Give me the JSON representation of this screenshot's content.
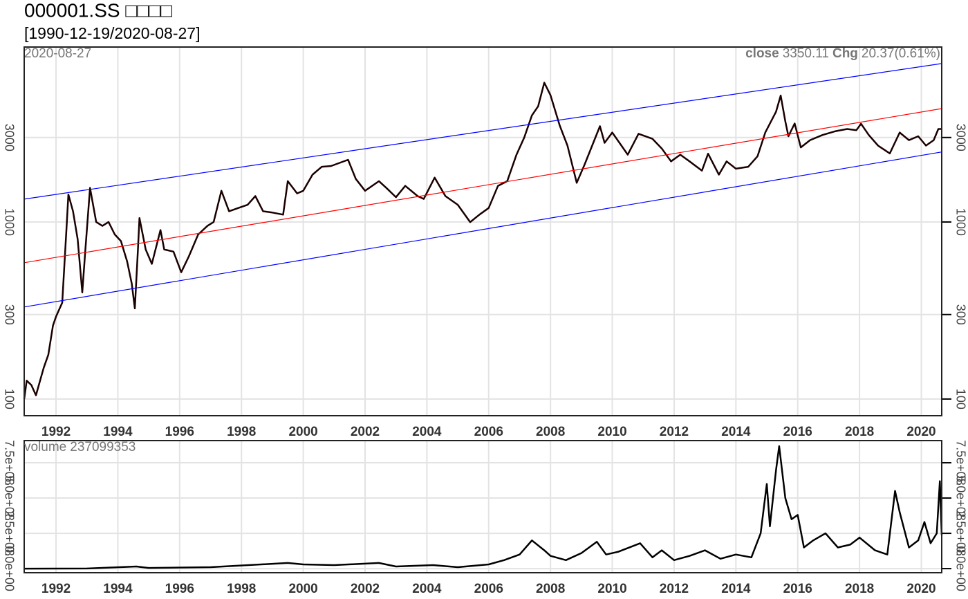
{
  "chart_data": [
    {
      "type": "line",
      "title": "000001.SS □□□□",
      "subtitle": "[1990-12-19/2020-08-27]",
      "date_label": "2020-08-27",
      "info": {
        "close_label": "close",
        "close": 3350.11,
        "chg_label": "Chg",
        "chg": "20.37(0.61%)"
      },
      "log_scale": true,
      "grid": true,
      "xlim": [
        1990.97,
        2020.66
      ],
      "xticks": [
        1992,
        1994,
        1996,
        1998,
        2000,
        2002,
        2004,
        2006,
        2008,
        2010,
        2012,
        2014,
        2016,
        2018,
        2020
      ],
      "ylim": [
        80.5,
        9730
      ],
      "yticks": [
        100,
        300,
        1000,
        3000
      ],
      "x": [
        1990.97,
        1991.05,
        1991.2,
        1991.35,
        1991.5,
        1991.6,
        1991.75,
        1991.9,
        1992.0,
        1992.2,
        1992.35,
        1992.4,
        1992.55,
        1992.7,
        1992.85,
        1992.95,
        1993.1,
        1993.3,
        1993.5,
        1993.7,
        1993.9,
        1994.1,
        1994.3,
        1994.45,
        1994.55,
        1994.65,
        1994.7,
        1994.9,
        1995.1,
        1995.38,
        1995.5,
        1995.8,
        1996.05,
        1996.3,
        1996.6,
        1996.9,
        1997.1,
        1997.35,
        1997.6,
        1997.9,
        1998.2,
        1998.45,
        1998.7,
        1999.0,
        1999.35,
        1999.5,
        1999.8,
        2000.0,
        2000.3,
        2000.6,
        2000.9,
        2001.45,
        2001.7,
        2002.0,
        2002.45,
        2002.7,
        2003.0,
        2003.3,
        2003.7,
        2003.9,
        2004.25,
        2004.6,
        2005.0,
        2005.4,
        2005.7,
        2006.0,
        2006.3,
        2006.6,
        2006.9,
        2007.15,
        2007.4,
        2007.6,
        2007.8,
        2008.0,
        2008.3,
        2008.55,
        2008.85,
        2009.1,
        2009.6,
        2009.75,
        2010.0,
        2010.5,
        2010.85,
        2011.3,
        2011.6,
        2011.9,
        2012.2,
        2012.5,
        2012.9,
        2013.1,
        2013.45,
        2013.7,
        2014.0,
        2014.4,
        2014.7,
        2014.95,
        2015.3,
        2015.45,
        2015.6,
        2015.7,
        2015.9,
        2016.1,
        2016.4,
        2016.8,
        2017.2,
        2017.6,
        2017.9,
        2018.05,
        2018.3,
        2018.6,
        2018.98,
        2019.3,
        2019.6,
        2019.9,
        2020.15,
        2020.4,
        2020.55,
        2020.66
      ],
      "series": [
        {
          "color": "#1a0000",
          "values": [
            100,
            127,
            120,
            105,
            130,
            150,
            178,
            260,
            292,
            350,
            1000,
            1429,
            1150,
            800,
            400,
            700,
            1558,
            1000,
            950,
            1000,
            850,
            780,
            600,
            450,
            325,
            700,
            1052,
            700,
            580,
            900,
            700,
            680,
            520,
            640,
            850,
            950,
            1000,
            1500,
            1150,
            1200,
            1250,
            1400,
            1150,
            1130,
            1100,
            1700,
            1450,
            1500,
            1850,
            2050,
            2070,
            2245,
            1750,
            1500,
            1700,
            1550,
            1380,
            1600,
            1400,
            1350,
            1780,
            1400,
            1250,
            998,
            1100,
            1200,
            1600,
            1700,
            2400,
            3000,
            4000,
            4500,
            6124,
            5200,
            3500,
            2700,
            1664,
            2100,
            3478,
            2800,
            3200,
            2400,
            3150,
            2950,
            2600,
            2200,
            2400,
            2200,
            1950,
            2430,
            1850,
            2200,
            2000,
            2050,
            2350,
            3200,
            4200,
            5178,
            3700,
            3050,
            3600,
            2638,
            2900,
            3100,
            3250,
            3350,
            3300,
            3587,
            3100,
            2700,
            2440,
            3200,
            2900,
            3050,
            2700,
            2900,
            3350,
            3350.11
          ]
        }
      ],
      "trend_lines": [
        {
          "color": "#ff0000",
          "x": [
            1990.97,
            2020.66
          ],
          "values": [
            589,
            4370
          ]
        },
        {
          "color": "#0000ff",
          "x": [
            1990.97,
            2020.66
          ],
          "values": [
            1346,
            7850
          ]
        },
        {
          "color": "#0000ff",
          "x": [
            1990.97,
            2020.66
          ],
          "values": [
            331,
            2485
          ]
        }
      ]
    },
    {
      "type": "line",
      "volume_label": "volume",
      "last_volume": 237099353,
      "grid": true,
      "xlim": [
        1990.97,
        2020.66
      ],
      "xticks": [
        1992,
        1994,
        1996,
        1998,
        2000,
        2002,
        2004,
        2006,
        2008,
        2010,
        2012,
        2014,
        2016,
        2018,
        2020
      ],
      "ylim": [
        -29000000,
        907000000
      ],
      "yticks": [
        {
          "value": 0,
          "label": "0.0e+00"
        },
        {
          "value": 250000000,
          "label": "2.5e+08"
        },
        {
          "value": 500000000,
          "label": "5.0e+08"
        },
        {
          "value": 750000000,
          "label": "7.5e+08"
        }
      ],
      "x": [
        1990.97,
        1993.0,
        1994.6,
        1995.0,
        1997.0,
        1999.5,
        2000.0,
        2001.0,
        2002.45,
        2003.0,
        2004.2,
        2005.0,
        2006.0,
        2006.5,
        2007.0,
        2007.4,
        2007.8,
        2008.0,
        2008.5,
        2009.0,
        2009.5,
        2009.8,
        2010.2,
        2010.9,
        2011.3,
        2011.6,
        2012.0,
        2012.5,
        2013.0,
        2013.5,
        2014.0,
        2014.5,
        2014.8,
        2015.0,
        2015.1,
        2015.3,
        2015.4,
        2015.6,
        2015.8,
        2016.0,
        2016.2,
        2016.5,
        2016.9,
        2017.3,
        2017.7,
        2018.0,
        2018.5,
        2018.9,
        2019.15,
        2019.3,
        2019.6,
        2019.9,
        2020.1,
        2020.3,
        2020.5,
        2020.6,
        2020.66
      ],
      "series": [
        {
          "color": "#000000",
          "values": [
            0,
            1000000,
            15000000,
            5000000,
            10000000,
            40000000,
            30000000,
            25000000,
            40000000,
            15000000,
            25000000,
            10000000,
            30000000,
            60000000,
            100000000,
            200000000,
            130000000,
            90000000,
            60000000,
            110000000,
            190000000,
            100000000,
            120000000,
            180000000,
            80000000,
            130000000,
            60000000,
            90000000,
            130000000,
            70000000,
            100000000,
            80000000,
            250000000,
            600000000,
            300000000,
            700000000,
            868000000,
            500000000,
            350000000,
            380000000,
            150000000,
            200000000,
            250000000,
            150000000,
            170000000,
            220000000,
            130000000,
            100000000,
            550000000,
            400000000,
            150000000,
            200000000,
            330000000,
            180000000,
            250000000,
            620000000,
            237099353
          ]
        }
      ]
    }
  ]
}
